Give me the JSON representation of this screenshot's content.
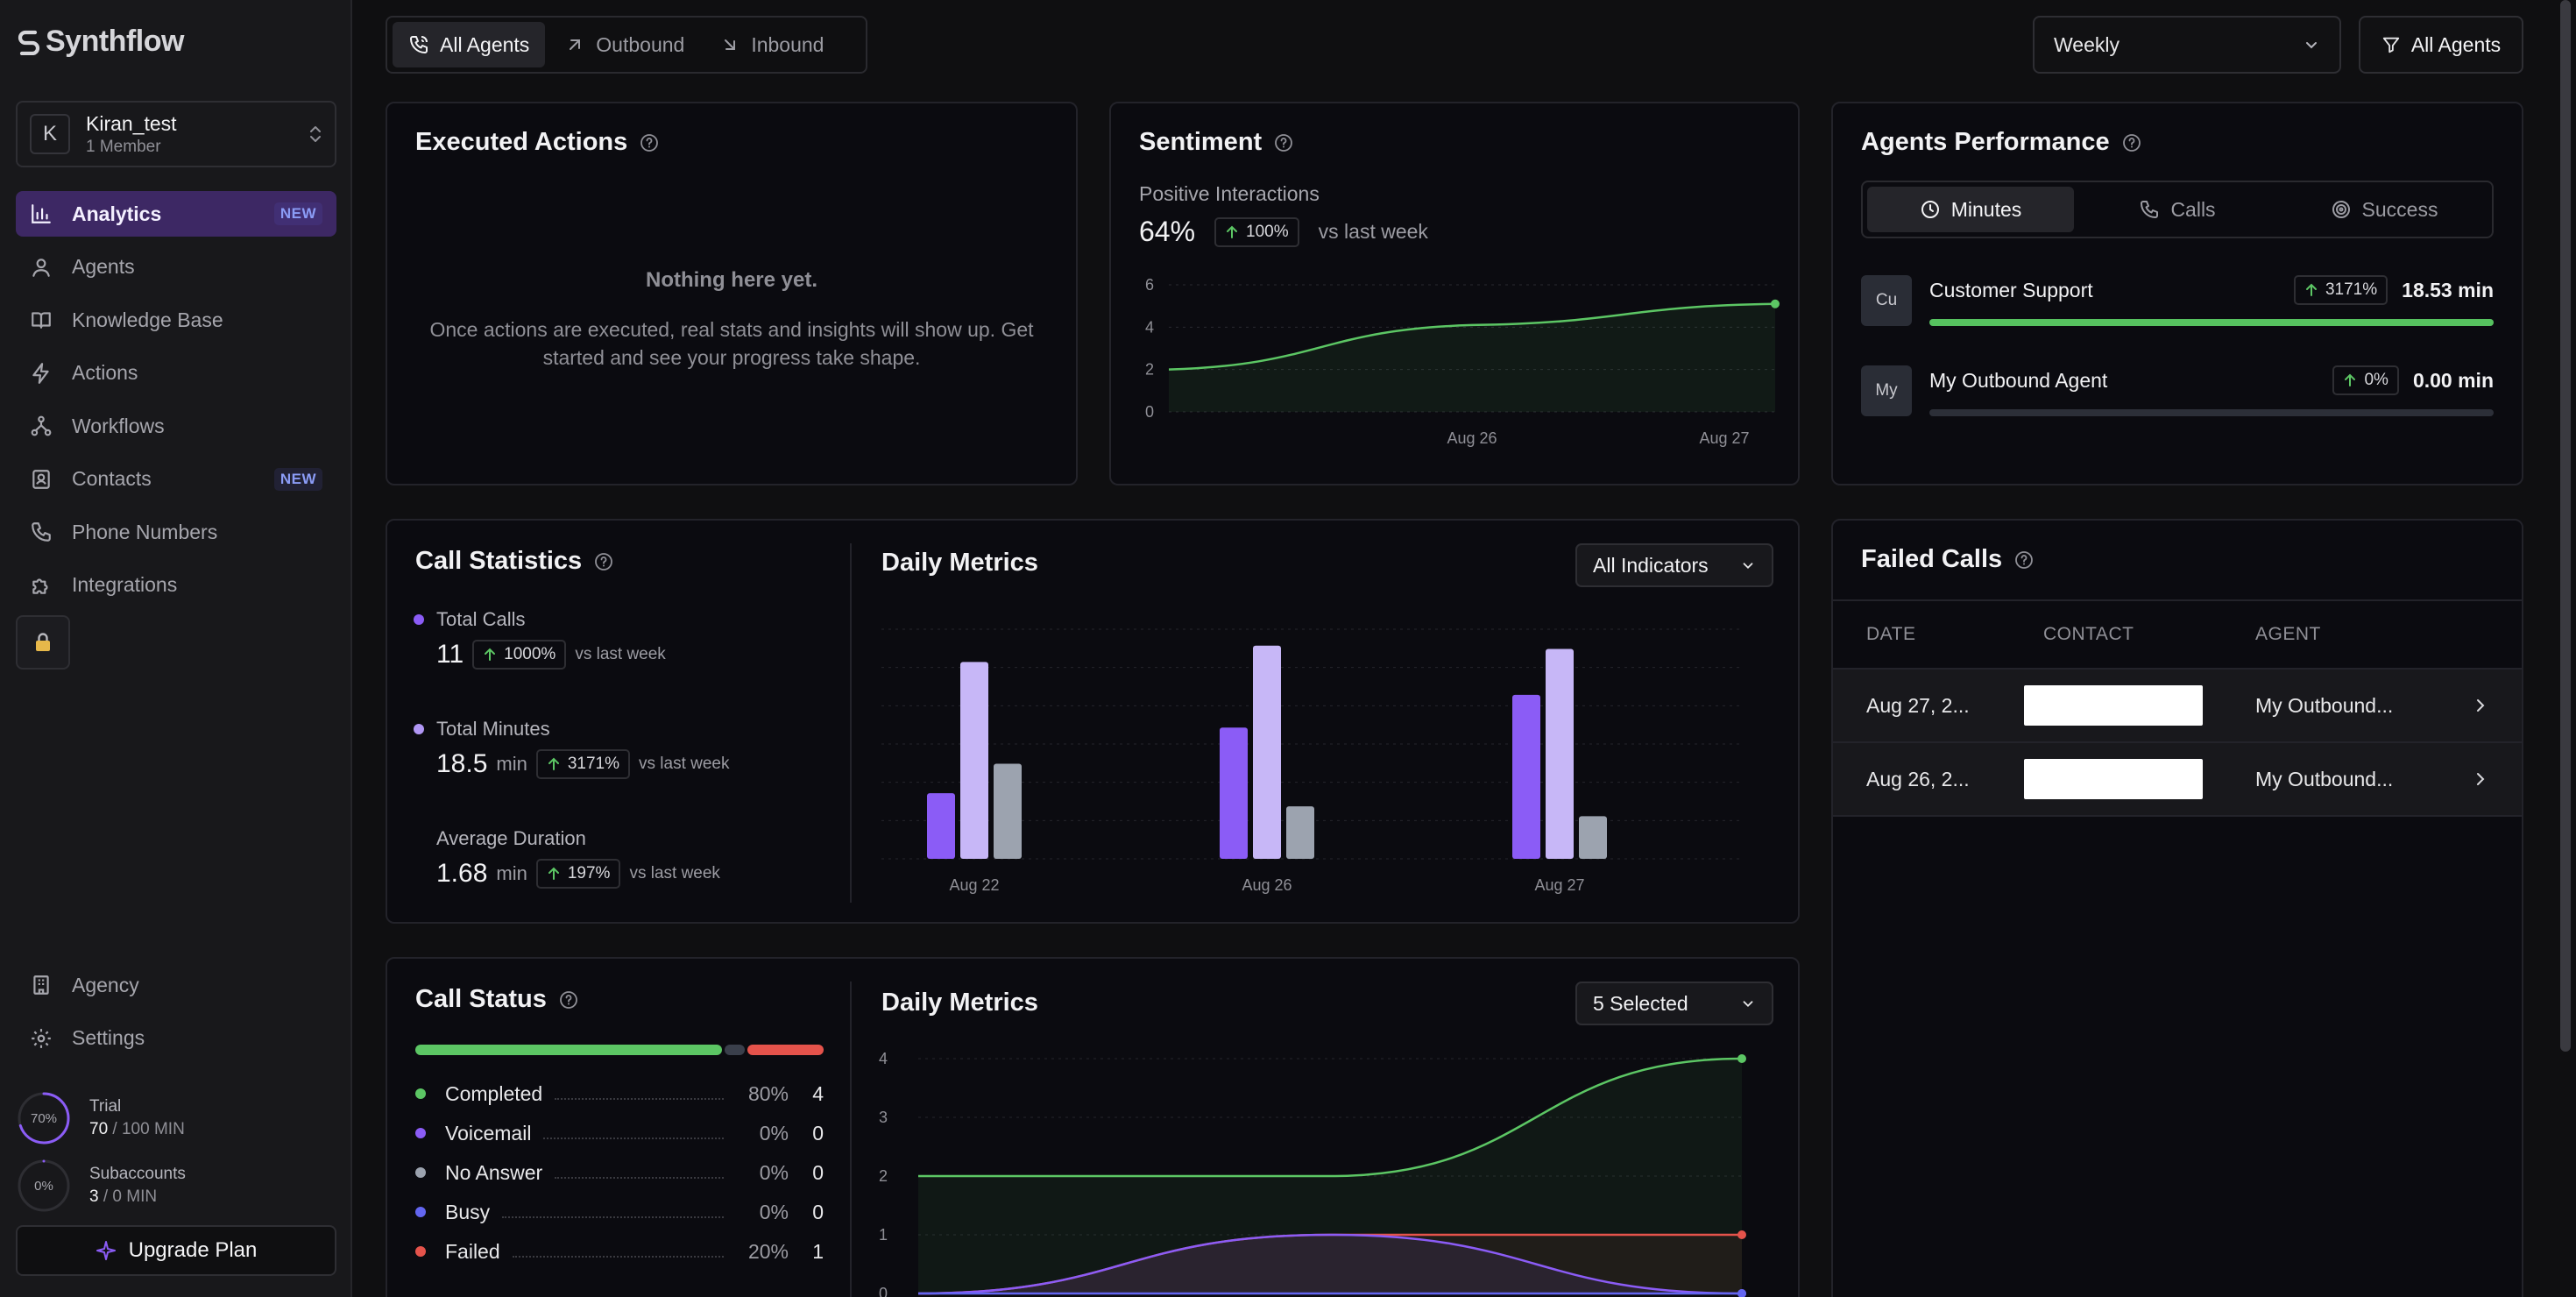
{
  "app": {
    "logo_text": "Synthflow"
  },
  "workspace": {
    "initial": "K",
    "name": "Kiran_test",
    "members": "1 Member"
  },
  "nav": [
    {
      "label": "Analytics",
      "badge": "NEW"
    },
    {
      "label": "Agents"
    },
    {
      "label": "Knowledge Base"
    },
    {
      "label": "Actions"
    },
    {
      "label": "Workflows"
    },
    {
      "label": "Contacts",
      "badge": "NEW"
    },
    {
      "label": "Phone Numbers"
    },
    {
      "label": "Integrations"
    }
  ],
  "bottom_nav": [
    {
      "label": "Agency"
    },
    {
      "label": "Settings"
    }
  ],
  "usage": {
    "trial": {
      "label": "Trial",
      "pct_text": "70%",
      "fraction": 0.7,
      "used": "70",
      "total": "/ 100 MIN"
    },
    "subaccounts": {
      "label": "Subaccounts",
      "pct_text": "0%",
      "fraction": 0,
      "used": "3",
      "total": "/ 0 MIN"
    }
  },
  "upgrade_label": "Upgrade Plan",
  "tabs": [
    {
      "label": "All Agents"
    },
    {
      "label": "Outbound"
    },
    {
      "label": "Inbound"
    }
  ],
  "period": "Weekly",
  "agent_filter": "All Agents",
  "executed_actions": {
    "title": "Executed Actions",
    "empty_title": "Nothing here yet.",
    "empty_body": "Once actions are executed, real stats and insights will show up. Get started and see your progress take shape."
  },
  "sentiment": {
    "title": "Sentiment",
    "subtitle": "Positive Interactions",
    "value": "64%",
    "delta": "100%",
    "vs": "vs last week"
  },
  "agents_performance": {
    "title": "Agents Performance",
    "segments": [
      {
        "label": "Minutes"
      },
      {
        "label": "Calls"
      },
      {
        "label": "Success"
      }
    ],
    "agents": [
      {
        "initials": "Cu",
        "name": "Customer Support",
        "delta": "3171%",
        "value": "18.53 min",
        "fraction": 1.0
      },
      {
        "initials": "My",
        "name": "My Outbound Agent",
        "delta": "0%",
        "value": "0.00 min",
        "fraction": 0
      }
    ]
  },
  "failed_calls": {
    "title": "Failed Calls",
    "headers": {
      "date": "DATE",
      "contact": "CONTACT",
      "agent": "AGENT"
    },
    "rows": [
      {
        "date": "Aug 27, 2...",
        "agent": "My Outbound..."
      },
      {
        "date": "Aug 26, 2...",
        "agent": "My Outbound..."
      }
    ]
  },
  "call_statistics": {
    "title": "Call Statistics",
    "stats": [
      {
        "label": "Total Calls",
        "value": "11",
        "unit": "",
        "delta": "1000%",
        "vs": "vs last week",
        "color": "#8b5cf6"
      },
      {
        "label": "Total Minutes",
        "value": "18.5",
        "unit": "min",
        "delta": "3171%",
        "vs": "vs last week",
        "color": "#b197f5"
      },
      {
        "label": "Average Duration",
        "value": "1.68",
        "unit": "min",
        "delta": "197%",
        "vs": "vs last week",
        "color": ""
      }
    ]
  },
  "daily_metrics_1": {
    "title": "Daily Metrics",
    "dropdown": "All Indicators"
  },
  "call_status": {
    "title": "Call Status",
    "items": [
      {
        "label": "Completed",
        "pct": "80%",
        "count": "4",
        "color": "#5cc664"
      },
      {
        "label": "Voicemail",
        "pct": "0%",
        "count": "0",
        "color": "#8b5cf6"
      },
      {
        "label": "No Answer",
        "pct": "0%",
        "count": "0",
        "color": "#9ca3af"
      },
      {
        "label": "Busy",
        "pct": "0%",
        "count": "0",
        "color": "#6366f1"
      },
      {
        "label": "Failed",
        "pct": "20%",
        "count": "1",
        "color": "#e5534b"
      }
    ],
    "bar": [
      {
        "fraction": 0.76,
        "color": "#5cc664"
      },
      {
        "fraction": 0.05,
        "color": "#3a3f4b"
      },
      {
        "fraction": 0.19,
        "color": "#e5534b"
      }
    ]
  },
  "daily_metrics_2": {
    "title": "Daily Metrics",
    "dropdown": "5 Selected"
  },
  "chart_data": [
    {
      "type": "area",
      "x": [
        "",
        "Aug 26",
        "Aug 27"
      ],
      "series": [
        {
          "values": [
            2.0,
            4.1,
            5.1
          ],
          "color": "#5cc664"
        }
      ],
      "ylim": [
        0,
        6
      ],
      "yticks": [
        "0",
        "2",
        "4",
        "6"
      ],
      "xticks": [
        "Aug 26",
        "Aug 27"
      ],
      "grid": true
    },
    {
      "type": "bar",
      "categories": [
        "Aug 22",
        "Aug 26",
        "Aug 27"
      ],
      "series": [
        {
          "values": [
            2,
            4,
            5
          ],
          "color": "#8b5cf6"
        },
        {
          "values": [
            6,
            6.5,
            6.4
          ],
          "color": "#c7b7f7"
        },
        {
          "values": [
            2.9,
            1.6,
            1.3
          ],
          "color": "#9ca3af"
        }
      ],
      "ylim": [
        0,
        7
      ],
      "grid": true
    },
    {
      "type": "line",
      "x": [
        "",
        "",
        ""
      ],
      "series": [
        {
          "values": [
            2,
            2,
            4
          ],
          "color": "#5cc664"
        },
        {
          "values": [
            0,
            1,
            1
          ],
          "color": "#e5534b"
        },
        {
          "values": [
            0,
            1,
            0
          ],
          "color": "#8b5cf6"
        },
        {
          "values": [
            0,
            0,
            0
          ],
          "color": "#6366f1"
        }
      ],
      "ylim": [
        0,
        4
      ],
      "yticks": [
        "0",
        "1",
        "2",
        "3",
        "4"
      ],
      "grid": true
    }
  ]
}
